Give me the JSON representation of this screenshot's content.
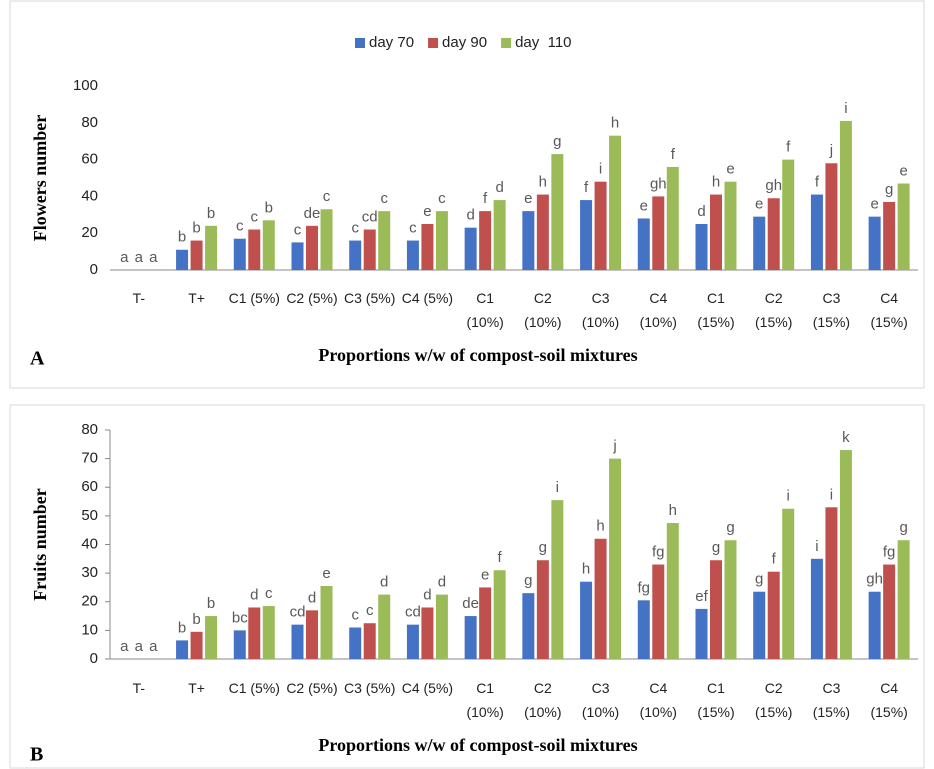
{
  "chart_data": [
    {
      "type": "bar",
      "panel_label": "A",
      "x_label": "Proportions w/w of compost-soil mixtures",
      "y_label": "Flowers number",
      "legend": "top",
      "y_axis_line": false,
      "categories": [
        "T-",
        "T+",
        "C1 (5%)",
        "C2 (5%)",
        "C3 (5%)",
        "C4 (5%)",
        "C1 (10%)",
        "C2 (10%)",
        "C3 (10%)",
        "C4 (10%)",
        "C1 (15%)",
        "C2 (15%)",
        "C3 (15%)",
        "C4 (15%)"
      ],
      "ylim": [
        0,
        100
      ],
      "yticks": [
        0,
        20,
        40,
        60,
        80,
        100
      ],
      "series": [
        {
          "name": "day 70",
          "color": "#4472c4",
          "values": [
            0,
            11,
            17,
            15,
            16,
            16,
            23,
            32,
            38,
            28,
            25,
            29,
            41,
            29
          ],
          "letters": [
            "a",
            "b",
            "c",
            "c",
            "c",
            "c",
            "d",
            "e",
            "f",
            "e",
            "d",
            "e",
            "f",
            "e"
          ]
        },
        {
          "name": "day 90",
          "color": "#c0504d",
          "values": [
            0,
            16,
            22,
            24,
            22,
            25,
            32,
            41,
            48,
            40,
            41,
            39,
            58,
            37
          ],
          "letters": [
            "a",
            "b",
            "c",
            "de",
            "cd",
            "e",
            "f",
            "h",
            "i",
            "gh",
            "h",
            "gh",
            "j",
            "g"
          ]
        },
        {
          "name": "day  110",
          "color": "#9bbb59",
          "values": [
            0,
            24,
            27,
            33,
            32,
            32,
            38,
            63,
            73,
            56,
            48,
            60,
            81,
            47
          ],
          "letters": [
            "a",
            "b",
            "b",
            "c",
            "c",
            "c",
            "d",
            "g",
            "h",
            "f",
            "e",
            "f",
            "i",
            "e"
          ]
        }
      ]
    },
    {
      "type": "bar",
      "panel_label": "B",
      "x_label": "Proportions w/w of compost-soil mixtures",
      "y_label": "Fruits number",
      "y_axis_line": true,
      "categories": [
        "T-",
        "T+",
        "C1 (5%)",
        "C2 (5%)",
        "C3 (5%)",
        "C4 (5%)",
        "C1 (10%)",
        "C2 (10%)",
        "C3 (10%)",
        "C4 (10%)",
        "C1 (15%)",
        "C2 (15%)",
        "C3 (15%)",
        "C4 (15%)"
      ],
      "ylim": [
        0,
        80
      ],
      "yticks": [
        0,
        10,
        20,
        30,
        40,
        50,
        60,
        70,
        80
      ],
      "series": [
        {
          "color": "#4472c4",
          "values": [
            0,
            6.5,
            10,
            12,
            11,
            12,
            15,
            23,
            27,
            20.5,
            17.5,
            23.5,
            35,
            23.5
          ],
          "letters": [
            "a",
            "b",
            "bc",
            "cd",
            "c",
            "cd",
            "de",
            "g",
            "h",
            "fg",
            "ef",
            "g",
            "i",
            "gh"
          ]
        },
        {
          "color": "#c0504d",
          "values": [
            0,
            9.5,
            18,
            17,
            12.5,
            18,
            25,
            34.5,
            42,
            33,
            34.5,
            30.5,
            53,
            33
          ],
          "letters": [
            "a",
            "b",
            "d",
            "d",
            "c",
            "d",
            "e",
            "g",
            "h",
            "fg",
            "g",
            "f",
            "i",
            "fg"
          ]
        },
        {
          "color": "#9bbb59",
          "values": [
            0,
            15,
            18.5,
            25.5,
            22.5,
            22.5,
            31,
            55.5,
            70,
            47.5,
            41.5,
            52.5,
            73,
            41.5
          ],
          "letters": [
            "a",
            "b",
            "c",
            "e",
            "d",
            "d",
            "f",
            "i",
            "j",
            "h",
            "g",
            "i",
            "k",
            "g"
          ]
        }
      ]
    }
  ]
}
